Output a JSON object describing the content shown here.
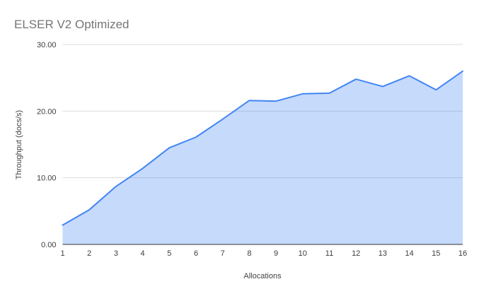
{
  "colors": {
    "line": "#4285F4",
    "area_fill": "rgba(66,133,244,0.30)",
    "grid": "#DBDBDB",
    "axis_line": "#333333",
    "title_text": "#757575",
    "tick_text": "#3C3C3C",
    "axis_title_text": "#424242",
    "background": "#FFFFFF"
  },
  "chart_data": {
    "type": "area",
    "title": "ELSER V2 Optimized",
    "xlabel": "Allocations",
    "ylabel": "Throughput (docs/s)",
    "x": [
      1,
      2,
      3,
      4,
      5,
      6,
      7,
      8,
      9,
      10,
      11,
      12,
      13,
      14,
      15,
      16
    ],
    "values": [
      2.9,
      5.2,
      8.7,
      11.4,
      14.5,
      16.1,
      18.8,
      21.6,
      21.5,
      22.6,
      22.7,
      24.8,
      23.7,
      25.3,
      23.2,
      26.0
    ],
    "xtick_labels": [
      "1",
      "2",
      "3",
      "4",
      "5",
      "6",
      "7",
      "8",
      "9",
      "10",
      "11",
      "12",
      "13",
      "14",
      "15",
      "16"
    ],
    "yticks": [
      0,
      10,
      20,
      30
    ],
    "ytick_labels": [
      "0.00",
      "10.00",
      "20.00",
      "30.00"
    ],
    "ylim": [
      0,
      30
    ],
    "grid": true,
    "legend": "none"
  }
}
